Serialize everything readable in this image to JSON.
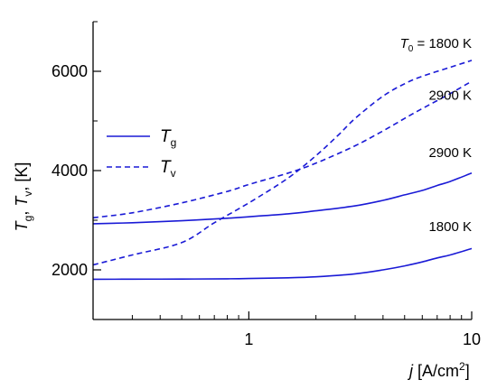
{
  "chart_data": {
    "type": "line",
    "xscale": "log",
    "xlim": [
      0.2,
      10
    ],
    "ylim": [
      1000,
      7000
    ],
    "x_ticks": [
      {
        "value": 1,
        "label": "1"
      },
      {
        "value": 10,
        "label": "10"
      }
    ],
    "y_ticks": [
      {
        "value": 2000,
        "label": "2000"
      },
      {
        "value": 4000,
        "label": "4000"
      },
      {
        "value": 6000,
        "label": "6000"
      }
    ],
    "xlabel": {
      "var": "j",
      "unit": " [A/cm",
      "sup": "2",
      "close": "]"
    },
    "ylabel": {
      "a": "T",
      "a_sub": "g",
      "sep": ", ",
      "b": "T",
      "b_sub": "v",
      "unit": ", [K]"
    },
    "grid": false,
    "legend": {
      "placement": "left-middle",
      "entries": [
        {
          "label": "T",
          "sub": "g",
          "style": "solid"
        },
        {
          "label": "T",
          "sub": "v",
          "style": "dashed"
        }
      ]
    },
    "colors": {
      "line": "#1a1ad6",
      "axis": "#000000"
    },
    "series": [
      {
        "group": "Tg",
        "T0": "1800",
        "style": "solid",
        "x": [
          0.2,
          0.3,
          0.5,
          0.8,
          1,
          1.5,
          2,
          3,
          4,
          5,
          6,
          7,
          8,
          10
        ],
        "y": [
          1810,
          1812,
          1815,
          1820,
          1825,
          1840,
          1860,
          1920,
          2000,
          2080,
          2160,
          2240,
          2300,
          2430
        ]
      },
      {
        "group": "Tg",
        "T0": "2900",
        "style": "solid",
        "x": [
          0.2,
          0.3,
          0.5,
          0.8,
          1,
          1.5,
          2,
          3,
          4,
          5,
          6,
          7,
          8,
          10
        ],
        "y": [
          2930,
          2950,
          2990,
          3040,
          3070,
          3130,
          3190,
          3290,
          3400,
          3510,
          3600,
          3700,
          3780,
          3950
        ]
      },
      {
        "group": "Tv",
        "T0": "1800",
        "style": "dashed",
        "x": [
          0.2,
          0.3,
          0.5,
          0.7,
          1,
          1.5,
          2,
          2.5,
          3,
          4,
          5,
          6,
          8,
          10
        ],
        "y": [
          2100,
          2300,
          2550,
          2950,
          3350,
          3850,
          4300,
          4700,
          5050,
          5500,
          5750,
          5900,
          6080,
          6220
        ]
      },
      {
        "group": "Tv",
        "T0": "2900",
        "style": "dashed",
        "x": [
          0.2,
          0.3,
          0.5,
          0.8,
          1,
          1.5,
          2,
          3,
          4,
          5,
          6,
          8,
          10
        ],
        "y": [
          3050,
          3150,
          3350,
          3580,
          3720,
          3950,
          4150,
          4500,
          4800,
          5050,
          5250,
          5550,
          5800
        ]
      }
    ],
    "annotations": [
      {
        "text_prefix": "T",
        "text_sub": "0",
        "text": " = 1800 K",
        "x": 10,
        "y": 6470
      },
      {
        "text": "2900 K",
        "x": 10,
        "y": 5430
      },
      {
        "text": "2900 K",
        "x": 10,
        "y": 4270
      },
      {
        "text": "1800 K",
        "x": 10,
        "y": 2780
      }
    ]
  }
}
